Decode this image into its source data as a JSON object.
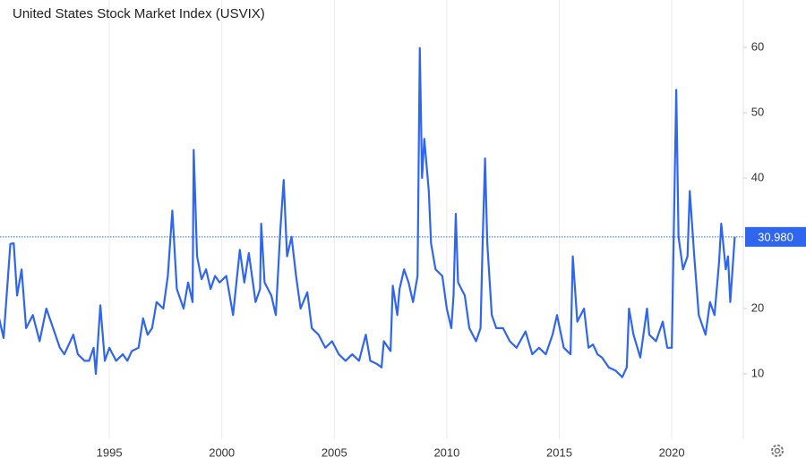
{
  "chart_data": {
    "type": "line",
    "title": "United States Stock Market Index (USVIX)",
    "color": "#2f66f0",
    "x": [
      1990.0,
      1990.3,
      1990.6,
      1990.75,
      1990.9,
      1991.1,
      1991.3,
      1991.6,
      1991.9,
      1992.2,
      1992.5,
      1992.8,
      1993.0,
      1993.4,
      1993.6,
      1993.9,
      1994.1,
      1994.3,
      1994.4,
      1994.6,
      1994.8,
      1995.0,
      1995.3,
      1995.6,
      1995.8,
      1996.0,
      1996.3,
      1996.5,
      1996.7,
      1996.9,
      1997.1,
      1997.4,
      1997.6,
      1997.8,
      1998.0,
      1998.3,
      1998.5,
      1998.7,
      1998.75,
      1998.9,
      1999.1,
      1999.3,
      1999.5,
      1999.7,
      1999.9,
      2000.2,
      2000.5,
      2000.8,
      2001.0,
      2001.2,
      2001.5,
      2001.7,
      2001.75,
      2001.9,
      2002.2,
      2002.4,
      2002.6,
      2002.75,
      2002.9,
      2003.1,
      2003.3,
      2003.5,
      2003.8,
      2004.0,
      2004.3,
      2004.6,
      2004.9,
      2005.2,
      2005.5,
      2005.8,
      2006.1,
      2006.4,
      2006.6,
      2006.9,
      2007.1,
      2007.2,
      2007.5,
      2007.6,
      2007.8,
      2007.9,
      2008.1,
      2008.3,
      2008.5,
      2008.7,
      2008.8,
      2008.9,
      2009.0,
      2009.2,
      2009.3,
      2009.5,
      2009.8,
      2010.0,
      2010.2,
      2010.3,
      2010.4,
      2010.5,
      2010.8,
      2011.0,
      2011.3,
      2011.5,
      2011.6,
      2011.7,
      2011.8,
      2012.0,
      2012.2,
      2012.5,
      2012.8,
      2013.1,
      2013.5,
      2013.8,
      2014.1,
      2014.4,
      2014.7,
      2014.9,
      2015.2,
      2015.5,
      2015.6,
      2015.8,
      2016.1,
      2016.3,
      2016.5,
      2016.7,
      2016.9,
      2017.2,
      2017.5,
      2017.8,
      2018.0,
      2018.1,
      2018.3,
      2018.6,
      2018.9,
      2019.0,
      2019.3,
      2019.6,
      2019.8,
      2020.0,
      2020.2,
      2020.3,
      2020.5,
      2020.7,
      2020.8,
      2021.0,
      2021.2,
      2021.5,
      2021.7,
      2021.9,
      2022.1,
      2022.2,
      2022.4,
      2022.5,
      2022.6,
      2022.8
    ],
    "values": [
      20,
      15.5,
      29.9,
      30,
      22,
      26,
      17,
      19,
      15,
      20,
      17,
      14,
      13,
      16,
      13,
      12,
      12,
      14,
      10,
      20.5,
      12,
      14,
      12,
      13,
      12,
      13.5,
      14,
      18.5,
      16,
      17,
      21,
      20,
      25,
      35,
      23,
      20,
      24,
      21,
      44.3,
      28,
      24.5,
      26,
      23,
      25,
      24,
      25,
      19,
      29,
      24,
      28.5,
      21,
      23,
      33,
      24,
      22,
      19,
      32,
      39.7,
      28,
      31,
      25,
      20,
      22.5,
      17,
      16,
      14,
      15,
      13,
      12,
      13,
      12,
      16,
      12,
      11.5,
      11,
      15,
      13.5,
      23.5,
      19,
      23,
      26,
      24,
      21,
      25,
      59.9,
      40,
      46,
      38,
      30,
      26,
      25,
      20,
      17,
      22,
      34.5,
      24,
      22,
      17,
      15,
      17,
      31,
      43,
      30,
      19,
      17,
      17,
      15,
      14,
      16.5,
      13,
      14,
      13,
      16,
      19,
      14,
      13,
      28,
      18,
      20,
      14,
      14.5,
      13,
      12.5,
      11,
      10.5,
      9.5,
      11,
      20,
      16,
      12.5,
      20,
      16,
      15,
      18,
      14,
      14,
      53.5,
      31,
      26,
      28,
      38,
      28,
      19,
      16,
      21,
      19,
      27,
      33,
      26,
      28,
      21,
      31
    ],
    "xlim": [
      1990.14,
      2023.18
    ],
    "xticks": [
      1995,
      2000,
      2005,
      2010,
      2015,
      2020
    ],
    "ylim": [
      0,
      67.26
    ],
    "yticks": [
      10,
      20,
      40,
      50,
      60
    ],
    "grid": true,
    "reference_line": {
      "value": 30.98,
      "label": "30.980"
    }
  }
}
